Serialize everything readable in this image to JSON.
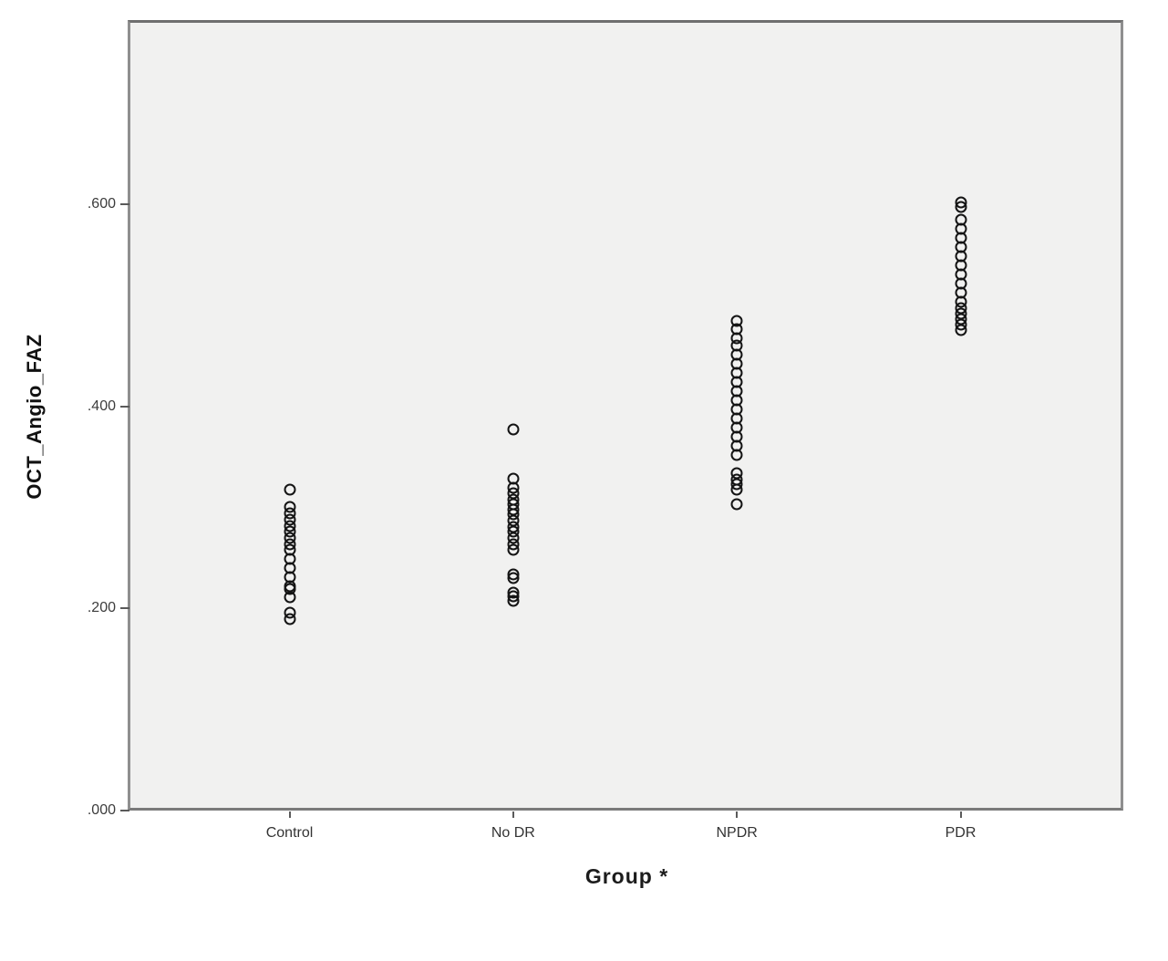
{
  "chart_data": {
    "type": "scatter",
    "title": "",
    "ylabel": "OCT_Angio_FAZ",
    "xlabel": "Group *",
    "categories": [
      "Control",
      "No DR",
      "NPDR",
      "PDR"
    ],
    "y_tick_values": [
      0.0,
      0.2,
      0.4,
      0.6
    ],
    "y_tick_labels": [
      ".000",
      ".200",
      ".400",
      ".600"
    ],
    "ylim": [
      0,
      0.78
    ],
    "grid": false,
    "legend_position": "none",
    "marker": "open-circle",
    "marker_color": "#141414",
    "plot_background": "#f1f1f0",
    "border_color": "#8f8f8f",
    "series": [
      {
        "name": "Control",
        "values": [
          0.19,
          0.196,
          0.211,
          0.219,
          0.222,
          0.231,
          0.24,
          0.249,
          0.258,
          0.264,
          0.27,
          0.276,
          0.282,
          0.288,
          0.294,
          0.301,
          0.318
        ]
      },
      {
        "name": "No DR",
        "values": [
          0.208,
          0.212,
          0.216,
          0.23,
          0.234,
          0.258,
          0.264,
          0.27,
          0.276,
          0.281,
          0.287,
          0.293,
          0.298,
          0.303,
          0.308,
          0.314,
          0.32,
          0.329,
          0.377
        ]
      },
      {
        "name": "NPDR",
        "values": [
          0.303,
          0.318,
          0.323,
          0.328,
          0.334,
          0.352,
          0.361,
          0.37,
          0.379,
          0.388,
          0.397,
          0.406,
          0.415,
          0.424,
          0.433,
          0.442,
          0.451,
          0.46,
          0.468,
          0.477,
          0.485
        ]
      },
      {
        "name": "PDR",
        "values": [
          0.476,
          0.481,
          0.487,
          0.492,
          0.497,
          0.504,
          0.513,
          0.522,
          0.531,
          0.54,
          0.549,
          0.558,
          0.567,
          0.576,
          0.585,
          0.598,
          0.602
        ]
      }
    ]
  }
}
